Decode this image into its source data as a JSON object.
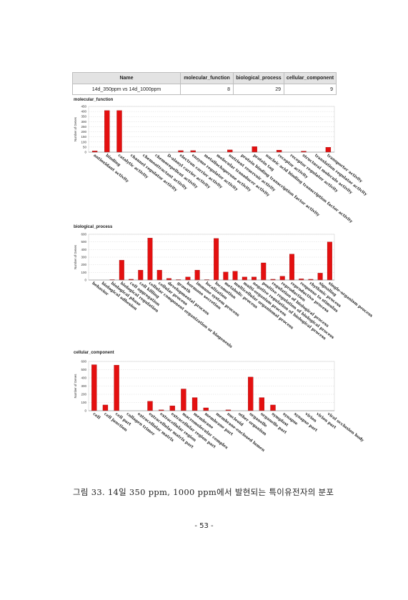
{
  "summary_table": {
    "headers": [
      "Name",
      "molecular_function",
      "biological_process",
      "cellular_component"
    ],
    "rows": [
      {
        "name": "14d_350ppm vs 14d_1000ppm",
        "molecular_function": "8",
        "biological_process": "29",
        "cellular_component": "9"
      }
    ]
  },
  "chart_data": [
    {
      "type": "bar",
      "title": "molecular_function",
      "ylabel": "Number of Genes",
      "ylim": [
        0,
        450
      ],
      "yticks": [
        0,
        50,
        100,
        150,
        200,
        250,
        300,
        350,
        400,
        450
      ],
      "categories": [
        "antioxidant activity",
        "binding",
        "catalytic activity",
        "channel regulator activity",
        "chemoattractant activity",
        "chemorepellent activity",
        "D-alanyl carrier activity",
        "electron carrier activity",
        "enzyme regulator activity",
        "metallochaperone activity",
        "molecular transducer activity",
        "nutrient reservoir activity",
        "protein binding transcription factor activity",
        "protein tag",
        "nucleic acid binding transcription factor activity",
        "receptor activity",
        "receptor regulator activity",
        "structural molecule activity",
        "translation regulator activity",
        "transporter activity"
      ],
      "series": [
        {
          "values": [
            12,
            410,
            410,
            0,
            0,
            0,
            0,
            15,
            15,
            0,
            0,
            22,
            0,
            55,
            0,
            20,
            0,
            10,
            0,
            48
          ]
        }
      ],
      "bar_color": "#e41010"
    },
    {
      "type": "bar",
      "title": "biological_process",
      "ylabel": "Number of Genes",
      "ylim": [
        0,
        600
      ],
      "yticks": [
        0,
        100,
        200,
        300,
        400,
        500,
        600
      ],
      "categories": [
        "behavior",
        "biological adhesion",
        "biological phase",
        "biological regulation",
        "cell aggregation",
        "cell killing",
        "cellular component organization or biogenesis",
        "cellular process",
        "developmental process",
        "growth",
        "hormone secretion",
        "immune system process",
        "localization",
        "locomotion",
        "metabolic process",
        "multicellular organismal process",
        "multi-organism process",
        "negative regulation of biological process",
        "positive regulation of biological process",
        "regulation of biological process",
        "reproduction",
        "reproductive process",
        "response to stimulus",
        "rhythmic process",
        "signaling",
        "single-organism process"
      ],
      "series": [
        {
          "values": [
            0,
            0,
            5,
            260,
            10,
            130,
            550,
            130,
            20,
            5,
            40,
            130,
            5,
            545,
            105,
            115,
            40,
            40,
            225,
            10,
            50,
            340,
            15,
            10,
            90,
            500
          ]
        }
      ],
      "bar_color": "#e41010"
    },
    {
      "type": "bar",
      "title": "cellular_component",
      "ylabel": "Number of Genes",
      "ylim": [
        0,
        600
      ],
      "yticks": [
        0,
        100,
        200,
        300,
        400,
        500,
        600
      ],
      "categories": [
        "cell",
        "cell junction",
        "cell part",
        "collagen trimer",
        "extracellular matrix",
        "extracellular matrix part",
        "extracellular region",
        "extracellular region part",
        "macromolecular complex",
        "membrane",
        "membrane part",
        "membrane-enclosed lumen",
        "nucleoid",
        "other organism",
        "organelle",
        "organelle part",
        "symplast",
        "synapse",
        "synapse part",
        "virion",
        "virion part",
        "viral occlusion body"
      ],
      "series": [
        {
          "values": [
            560,
            70,
            555,
            0,
            0,
            115,
            10,
            60,
            265,
            160,
            35,
            0,
            10,
            0,
            410,
            160,
            70,
            0,
            0,
            0,
            0,
            0
          ]
        }
      ],
      "bar_color": "#e41010"
    }
  ],
  "caption": "그림 33. 14일 350 ppm, 1000 ppm에서 발현되는 특이유전자의 분포",
  "page_number": "- 53 -"
}
